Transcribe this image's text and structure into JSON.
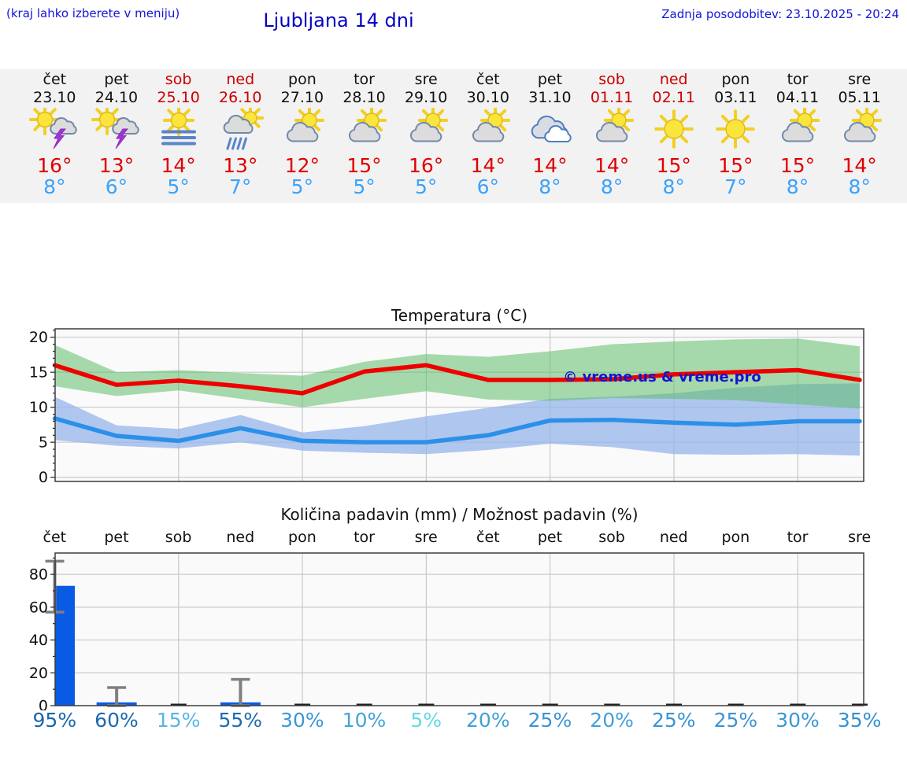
{
  "header": {
    "hint": "(kraj lahko izberete v meniju)",
    "title": "Ljubljana 14 dni",
    "updated": "Zadnja posodobitev: 23.10.2025 - 20:24"
  },
  "days": [
    {
      "name": "čet",
      "date": "23.10",
      "weekend": false,
      "icon": "thunderstorm",
      "tmax": "16°",
      "tmin": "8°"
    },
    {
      "name": "pet",
      "date": "24.10",
      "weekend": false,
      "icon": "thunderstorm",
      "tmax": "13°",
      "tmin": "6°"
    },
    {
      "name": "sob",
      "date": "25.10",
      "weekend": true,
      "icon": "fog",
      "tmax": "14°",
      "tmin": "5°"
    },
    {
      "name": "ned",
      "date": "26.10",
      "weekend": true,
      "icon": "rain",
      "tmax": "13°",
      "tmin": "7°"
    },
    {
      "name": "pon",
      "date": "27.10",
      "weekend": false,
      "icon": "partly",
      "tmax": "12°",
      "tmin": "5°"
    },
    {
      "name": "tor",
      "date": "28.10",
      "weekend": false,
      "icon": "partly",
      "tmax": "15°",
      "tmin": "5°"
    },
    {
      "name": "sre",
      "date": "29.10",
      "weekend": false,
      "icon": "partly",
      "tmax": "16°",
      "tmin": "5°"
    },
    {
      "name": "čet",
      "date": "30.10",
      "weekend": false,
      "icon": "partly",
      "tmax": "14°",
      "tmin": "6°"
    },
    {
      "name": "pet",
      "date": "31.10",
      "weekend": false,
      "icon": "cloudy",
      "tmax": "14°",
      "tmin": "8°"
    },
    {
      "name": "sob",
      "date": "01.11",
      "weekend": true,
      "icon": "partly",
      "tmax": "14°",
      "tmin": "8°"
    },
    {
      "name": "ned",
      "date": "02.11",
      "weekend": true,
      "icon": "sunny",
      "tmax": "15°",
      "tmin": "8°"
    },
    {
      "name": "pon",
      "date": "03.11",
      "weekend": false,
      "icon": "sunny",
      "tmax": "15°",
      "tmin": "7°"
    },
    {
      "name": "tor",
      "date": "04.11",
      "weekend": false,
      "icon": "partly",
      "tmax": "15°",
      "tmin": "8°"
    },
    {
      "name": "sre",
      "date": "05.11",
      "weekend": false,
      "icon": "partly",
      "tmax": "14°",
      "tmin": "8°"
    }
  ],
  "chart_data": [
    {
      "type": "line",
      "title": "Temperatura (°C)",
      "categories": [
        "čet",
        "pet",
        "sob",
        "ned",
        "pon",
        "tor",
        "sre",
        "čet",
        "pet",
        "sob",
        "ned",
        "pon",
        "tor",
        "sre"
      ],
      "ylim": [
        -0.6,
        21.2
      ],
      "yticks": [
        0,
        5,
        10,
        15,
        20
      ],
      "grid": true,
      "watermark": "© vreme.us & vreme.pro",
      "series": [
        {
          "name": "max-temp",
          "color": "#ee0000",
          "values": [
            16,
            13.2,
            13.8,
            13,
            12,
            15.1,
            16,
            13.9,
            13.9,
            14,
            14.7,
            15,
            15.3,
            13.9
          ]
        },
        {
          "name": "min-temp",
          "color": "#2b90e8",
          "values": [
            8.4,
            5.9,
            5.2,
            7,
            5.2,
            5,
            5,
            6,
            8.1,
            8.2,
            7.8,
            7.5,
            8,
            8
          ]
        }
      ],
      "bands": [
        {
          "name": "min-temp-range",
          "color": "rgba(150,180,235,0.75)",
          "hi": [
            11.5,
            7.4,
            6.9,
            8.9,
            6.4,
            7.3,
            8.7,
            9.9,
            11.2,
            11.5,
            12.0,
            12.8,
            13.3,
            13.4
          ],
          "lo": [
            5.3,
            4.5,
            4.1,
            5.0,
            3.8,
            3.5,
            3.3,
            3.9,
            4.8,
            4.3,
            3.3,
            3.2,
            3.3,
            3.1
          ]
        },
        {
          "name": "max-temp-range",
          "color": "rgba(95,190,105,0.55)",
          "hi": [
            18.9,
            15.0,
            15.3,
            14.9,
            14.5,
            16.5,
            17.6,
            17.2,
            18.0,
            19.0,
            19.4,
            19.7,
            19.8,
            18.7
          ],
          "lo": [
            13.0,
            11.6,
            12.4,
            11.2,
            10.0,
            11.2,
            12.3,
            11.1,
            10.9,
            11.3,
            11.2,
            11.0,
            10.4,
            9.8
          ]
        }
      ]
    },
    {
      "type": "bar",
      "title": "Količina padavin (mm) / Možnost padavin (%)",
      "categories": [
        "čet",
        "pet",
        "sob",
        "ned",
        "pon",
        "tor",
        "sre",
        "čet",
        "pet",
        "sob",
        "ned",
        "pon",
        "tor",
        "sre"
      ],
      "ylim": [
        0,
        93
      ],
      "yticks": [
        0,
        20,
        40,
        60,
        80
      ],
      "grid": true,
      "bar_color": "#0a5be4",
      "error_color": "#808080",
      "values_mm": [
        73,
        2,
        0,
        2,
        0,
        0,
        0,
        0,
        0,
        0,
        0,
        0,
        0,
        0
      ],
      "error_low": [
        57,
        0,
        0,
        0,
        0,
        0,
        0,
        0,
        0,
        0,
        0,
        0,
        0,
        0
      ],
      "error_high": [
        88,
        11,
        0,
        16,
        0,
        0,
        0,
        0,
        0,
        0,
        0,
        0,
        0,
        0
      ],
      "probabilities_pct": [
        95,
        60,
        15,
        55,
        30,
        10,
        5,
        20,
        25,
        20,
        25,
        25,
        30,
        35
      ],
      "prob_colors": [
        "#1a66ad",
        "#1d69ae",
        "#58b6e7",
        "#1e6bb0",
        "#3b97d5",
        "#45a3dc",
        "#63d9e6",
        "#42a0da",
        "#3d93d2",
        "#42a0da",
        "#3d93d2",
        "#3d93d2",
        "#3b97d5",
        "#3590d0"
      ]
    }
  ]
}
